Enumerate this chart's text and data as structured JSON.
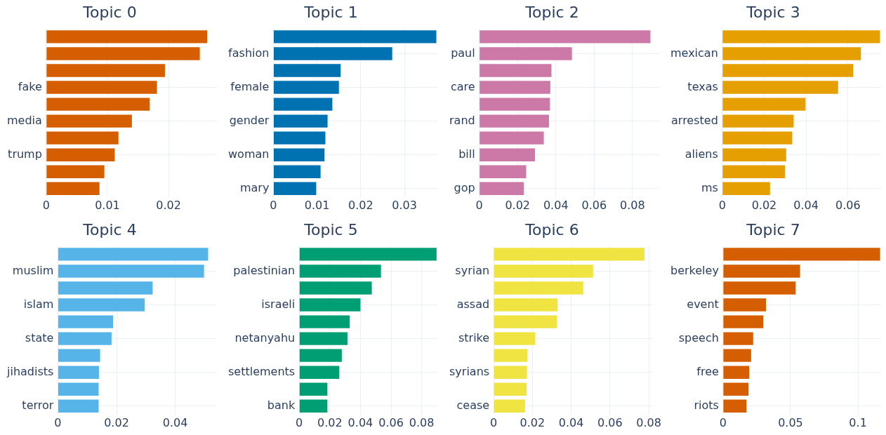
{
  "chart_data": [
    {
      "type": "bar",
      "orientation": "horizontal",
      "title": "Topic 0",
      "grid": true,
      "color": "#d55e00",
      "categories": [
        null,
        null,
        null,
        "fake",
        null,
        "media",
        null,
        "trump",
        null,
        null
      ],
      "values": [
        0.0263,
        0.0251,
        0.0194,
        0.0181,
        0.0169,
        0.014,
        0.0118,
        0.0112,
        0.0095,
        0.0087
      ],
      "xlim": [
        0,
        0.0279
      ],
      "xticks": [
        0,
        0.01,
        0.02
      ]
    },
    {
      "type": "bar",
      "orientation": "horizontal",
      "title": "Topic 1",
      "grid": true,
      "color": "#0072b2",
      "categories": [
        null,
        "fashion",
        null,
        "female",
        null,
        "gender",
        null,
        "woman",
        null,
        "mary"
      ],
      "values": [
        0.0373,
        0.0272,
        0.0154,
        0.015,
        0.0135,
        0.0124,
        0.0119,
        0.0117,
        0.0108,
        0.0098
      ],
      "xlim": [
        0,
        0.0377
      ],
      "xticks": [
        0,
        0.01,
        0.02,
        0.03
      ]
    },
    {
      "type": "bar",
      "orientation": "horizontal",
      "title": "Topic 2",
      "grid": true,
      "color": "#cc79a7",
      "categories": [
        null,
        "paul",
        null,
        "care",
        null,
        "rand",
        null,
        "bill",
        null,
        "gop"
      ],
      "values": [
        0.0894,
        0.0484,
        0.0377,
        0.0371,
        0.0369,
        0.0364,
        0.0337,
        0.0291,
        0.0245,
        0.0233
      ],
      "xlim": [
        0,
        0.094
      ],
      "xticks": [
        0,
        0.02,
        0.04,
        0.06,
        0.08
      ]
    },
    {
      "type": "bar",
      "orientation": "horizontal",
      "title": "Topic 3",
      "grid": true,
      "color": "#e69f00",
      "categories": [
        null,
        "mexican",
        null,
        "texas",
        null,
        "arrested",
        null,
        "aliens",
        null,
        "ms"
      ],
      "values": [
        0.0753,
        0.0662,
        0.0625,
        0.0553,
        0.0397,
        0.0341,
        0.0334,
        0.0305,
        0.03,
        0.0228
      ],
      "xlim": [
        0,
        0.0755
      ],
      "xticks": [
        0,
        0.02,
        0.04,
        0.06
      ]
    },
    {
      "type": "bar",
      "orientation": "horizontal",
      "title": "Topic 4",
      "grid": true,
      "color": "#56b4e9",
      "categories": [
        null,
        "muslim",
        null,
        "islam",
        null,
        "state",
        null,
        "jihadists",
        null,
        "terror"
      ],
      "values": [
        0.0512,
        0.0498,
        0.0323,
        0.0296,
        0.0188,
        0.0183,
        0.0144,
        0.014,
        0.0139,
        0.0139
      ],
      "xlim": [
        0,
        0.0542
      ],
      "xticks": [
        0,
        0.02,
        0.04
      ]
    },
    {
      "type": "bar",
      "orientation": "horizontal",
      "title": "Topic 5",
      "grid": true,
      "color": "#009e73",
      "categories": [
        null,
        "palestinian",
        null,
        "israeli",
        null,
        "netanyahu",
        null,
        "settlements",
        null,
        "bank"
      ],
      "values": [
        0.0897,
        0.0534,
        0.0474,
        0.04,
        0.033,
        0.0315,
        0.0278,
        0.0262,
        0.0184,
        0.0184
      ],
      "xlim": [
        0,
        0.0907
      ],
      "xticks": [
        0,
        0.02,
        0.04,
        0.06,
        0.08
      ]
    },
    {
      "type": "bar",
      "orientation": "horizontal",
      "title": "Topic 6",
      "grid": true,
      "color": "#f0e442",
      "categories": [
        null,
        "syrian",
        null,
        "assad",
        null,
        "strike",
        null,
        "syrians",
        null,
        "cease"
      ],
      "values": [
        0.0778,
        0.0513,
        0.0462,
        0.033,
        0.0327,
        0.0215,
        0.0175,
        0.0172,
        0.017,
        0.0162
      ],
      "xlim": [
        0,
        0.082
      ],
      "xticks": [
        0,
        0.02,
        0.04,
        0.06,
        0.08
      ]
    },
    {
      "type": "bar",
      "orientation": "horizontal",
      "title": "Topic 7",
      "grid": true,
      "color": "#d55e00",
      "categories": [
        null,
        "berkeley",
        null,
        "event",
        null,
        "speech",
        null,
        "free",
        null,
        "riots"
      ],
      "values": [
        0.1164,
        0.0571,
        0.0538,
        0.0318,
        0.0298,
        0.0223,
        0.0208,
        0.0194,
        0.0189,
        0.0174
      ],
      "xlim": [
        0,
        0.1166
      ],
      "xticks": [
        0,
        0.05,
        0.1
      ]
    }
  ]
}
